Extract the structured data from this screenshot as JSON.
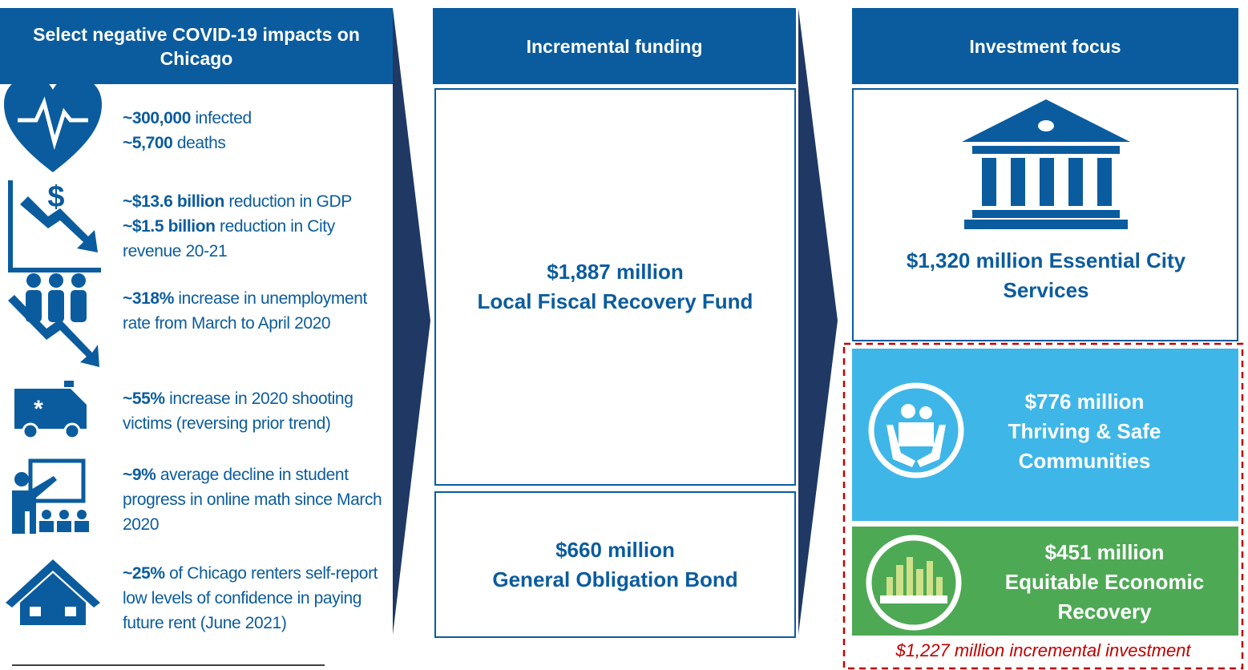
{
  "impacts": {
    "title": "Select negative COVID-19 impacts on Chicago",
    "items": [
      {
        "statements": [
          {
            "bold": "~300,000",
            "text": "infected"
          },
          {
            "bold": "~5,700",
            "text": "deaths"
          }
        ]
      },
      {
        "statements": [
          {
            "bold": "~$13.6 billion",
            "text": "reduction in GDP"
          },
          {
            "bold": "~$1.5 billion",
            "text": "reduction in City revenue 20-21"
          }
        ]
      },
      {
        "statements": [
          {
            "bold": "~318%",
            "text": "increase in unemployment rate from March to April 2020"
          }
        ]
      },
      {
        "statements": [
          {
            "bold": "~55%",
            "text": "increase in 2020 shooting victims (reversing prior trend)"
          }
        ]
      },
      {
        "statements": [
          {
            "bold": "~9%",
            "text": "average decline in student progress in online math since March 2020"
          }
        ]
      },
      {
        "statements": [
          {
            "bold": "~25%",
            "text": "of Chicago renters self-report low levels of confidence in paying future rent (June 2021)"
          }
        ]
      }
    ]
  },
  "funding": {
    "title": "Incremental funding",
    "sources": [
      {
        "amount": "$1,887 million",
        "name": "Local Fiscal Recovery Fund"
      },
      {
        "amount": "$660 million",
        "name": "General Obligation Bond"
      }
    ]
  },
  "investment": {
    "title": "Investment focus",
    "areas": [
      {
        "amount": "$1,320 million",
        "name": "Essential City Services"
      },
      {
        "amount": "$776 million",
        "name": "Thriving & Safe Communities"
      },
      {
        "amount": "$451 million",
        "name": "Equitable Economic Recovery"
      }
    ],
    "total": "$1,227 million incremental investment"
  }
}
